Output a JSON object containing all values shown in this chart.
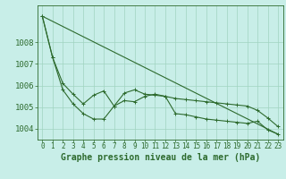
{
  "background_color": "#c8eee8",
  "grid_color": "#a0d4c0",
  "line_color": "#2d6a2d",
  "xlabel": "Graphe pression niveau de la mer (hPa)",
  "xlim": [
    -0.5,
    23.5
  ],
  "ylim": [
    1003.5,
    1009.7
  ],
  "yticks": [
    1004,
    1005,
    1006,
    1007,
    1008
  ],
  "xticks": [
    0,
    1,
    2,
    3,
    4,
    5,
    6,
    7,
    8,
    9,
    10,
    11,
    12,
    13,
    14,
    15,
    16,
    17,
    18,
    19,
    20,
    21,
    22,
    23
  ],
  "series1_x": [
    0,
    1,
    2,
    3,
    4,
    5,
    6,
    7,
    8,
    9,
    10,
    11,
    12,
    13,
    14,
    15,
    16,
    17,
    18,
    19,
    20,
    21,
    22,
    23
  ],
  "series1_y": [
    1009.2,
    1007.3,
    1006.1,
    1005.6,
    1005.15,
    1005.55,
    1005.75,
    1005.05,
    1005.65,
    1005.8,
    1005.6,
    1005.55,
    1005.5,
    1005.4,
    1005.35,
    1005.3,
    1005.25,
    1005.2,
    1005.15,
    1005.1,
    1005.05,
    1004.85,
    1004.5,
    1004.1
  ],
  "series2_x": [
    0,
    1,
    2,
    3,
    4,
    5,
    6,
    7,
    8,
    9,
    10,
    11,
    12,
    13,
    14,
    15,
    16,
    17,
    18,
    19,
    20,
    21,
    22,
    23
  ],
  "series2_y": [
    1009.2,
    1007.3,
    1005.8,
    1005.15,
    1004.7,
    1004.45,
    1004.45,
    1005.05,
    1005.3,
    1005.25,
    1005.5,
    1005.6,
    1005.5,
    1004.7,
    1004.65,
    1004.55,
    1004.45,
    1004.4,
    1004.35,
    1004.3,
    1004.25,
    1004.35,
    1003.95,
    1003.75
  ],
  "trend_x": [
    0,
    23
  ],
  "trend_y": [
    1009.2,
    1003.75
  ],
  "font_size_xlabel": 7,
  "font_size_ytick": 6.5,
  "font_size_xtick": 5.5
}
